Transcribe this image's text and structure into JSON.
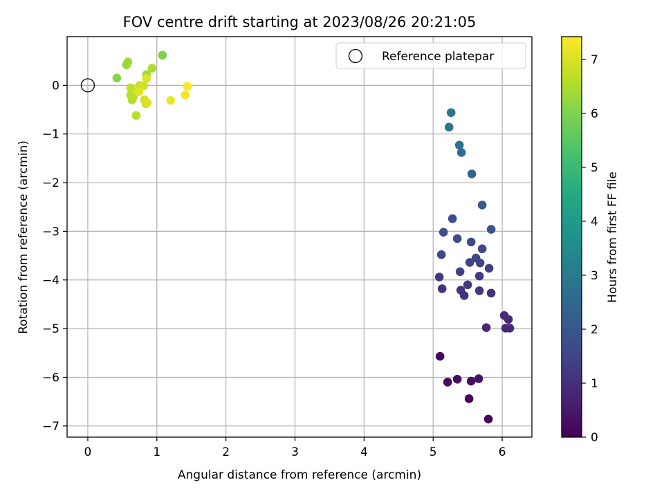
{
  "chart_data": {
    "type": "scatter",
    "title": "FOV centre drift starting at 2023/08/26 20:21:05",
    "xlabel": "Angular distance from reference (arcmin)",
    "ylabel": "Rotation from reference (arcmin)",
    "xlim": [
      -0.3,
      6.43
    ],
    "ylim": [
      -7.23,
      1.0
    ],
    "xticks": [
      0,
      1,
      2,
      3,
      4,
      5,
      6
    ],
    "yticks": [
      0,
      -1,
      -2,
      -3,
      -4,
      -5,
      -6,
      -7
    ],
    "grid": true,
    "legend": {
      "placement": "top-right",
      "entries": [
        "Reference platepar"
      ]
    },
    "reference_point": {
      "x": 0,
      "y": 0,
      "label": "Reference platepar"
    },
    "colorbar": {
      "label": "Hours from first FF file",
      "colormap": "viridis",
      "range": [
        0,
        7.42
      ],
      "ticks": [
        0,
        1,
        2,
        3,
        4,
        5,
        6,
        7
      ]
    },
    "series": [
      {
        "colormap": "viridis",
        "points": [
          {
            "x": 5.8,
            "y": -6.86,
            "t": 0.05
          },
          {
            "x": 5.52,
            "y": -6.44,
            "t": 0.1
          },
          {
            "x": 5.1,
            "y": -5.57,
            "t": 0.15
          },
          {
            "x": 5.21,
            "y": -6.1,
            "t": 0.2
          },
          {
            "x": 5.35,
            "y": -6.04,
            "t": 0.25
          },
          {
            "x": 5.55,
            "y": -6.08,
            "t": 0.3
          },
          {
            "x": 5.66,
            "y": -6.03,
            "t": 0.35
          },
          {
            "x": 5.77,
            "y": -4.98,
            "t": 0.8
          },
          {
            "x": 6.05,
            "y": -4.99,
            "t": 0.85
          },
          {
            "x": 6.11,
            "y": -4.99,
            "t": 0.85
          },
          {
            "x": 6.03,
            "y": -4.73,
            "t": 0.9
          },
          {
            "x": 6.09,
            "y": -4.81,
            "t": 0.9
          },
          {
            "x": 5.84,
            "y": -4.27,
            "t": 1.0
          },
          {
            "x": 5.45,
            "y": -4.32,
            "t": 1.05
          },
          {
            "x": 5.4,
            "y": -4.21,
            "t": 1.1
          },
          {
            "x": 5.13,
            "y": -4.18,
            "t": 1.1
          },
          {
            "x": 5.67,
            "y": -4.22,
            "t": 1.15
          },
          {
            "x": 5.5,
            "y": -4.1,
            "t": 1.2
          },
          {
            "x": 5.09,
            "y": -3.94,
            "t": 1.25
          },
          {
            "x": 5.67,
            "y": -3.92,
            "t": 1.3
          },
          {
            "x": 5.39,
            "y": -3.83,
            "t": 1.35
          },
          {
            "x": 5.81,
            "y": -3.76,
            "t": 1.4
          },
          {
            "x": 5.53,
            "y": -3.64,
            "t": 1.45
          },
          {
            "x": 5.68,
            "y": -3.65,
            "t": 1.5
          },
          {
            "x": 5.62,
            "y": -3.55,
            "t": 1.5
          },
          {
            "x": 5.12,
            "y": -3.48,
            "t": 1.55
          },
          {
            "x": 5.71,
            "y": -3.36,
            "t": 1.6
          },
          {
            "x": 5.55,
            "y": -3.22,
            "t": 1.65
          },
          {
            "x": 5.35,
            "y": -3.15,
            "t": 1.7
          },
          {
            "x": 5.15,
            "y": -3.02,
            "t": 1.75
          },
          {
            "x": 5.28,
            "y": -2.74,
            "t": 1.8
          },
          {
            "x": 5.84,
            "y": -2.96,
            "t": 1.9
          },
          {
            "x": 5.71,
            "y": -2.46,
            "t": 2.1
          },
          {
            "x": 5.56,
            "y": -1.82,
            "t": 2.4
          },
          {
            "x": 5.41,
            "y": -1.38,
            "t": 2.6
          },
          {
            "x": 5.38,
            "y": -1.23,
            "t": 2.7
          },
          {
            "x": 5.23,
            "y": -0.86,
            "t": 2.85
          },
          {
            "x": 5.26,
            "y": -0.56,
            "t": 2.95
          },
          {
            "x": 1.08,
            "y": 0.62,
            "t": 6.0
          },
          {
            "x": 0.42,
            "y": 0.15,
            "t": 6.1
          },
          {
            "x": 0.58,
            "y": 0.48,
            "t": 6.3
          },
          {
            "x": 0.56,
            "y": 0.42,
            "t": 6.35
          },
          {
            "x": 0.85,
            "y": 0.22,
            "t": 6.4
          },
          {
            "x": 0.93,
            "y": 0.35,
            "t": 6.5
          },
          {
            "x": 0.64,
            "y": -0.3,
            "t": 6.55
          },
          {
            "x": 0.7,
            "y": -0.62,
            "t": 6.6
          },
          {
            "x": 0.62,
            "y": -0.2,
            "t": 6.6
          },
          {
            "x": 0.66,
            "y": -0.24,
            "t": 6.65
          },
          {
            "x": 0.62,
            "y": -0.05,
            "t": 6.7
          },
          {
            "x": 0.73,
            "y": -0.1,
            "t": 6.75
          },
          {
            "x": 0.75,
            "y": 0.0,
            "t": 6.8
          },
          {
            "x": 0.81,
            "y": -0.01,
            "t": 6.85
          },
          {
            "x": 0.82,
            "y": -0.3,
            "t": 6.9
          },
          {
            "x": 0.84,
            "y": -0.38,
            "t": 6.95
          },
          {
            "x": 0.86,
            "y": -0.36,
            "t": 7.0
          },
          {
            "x": 0.85,
            "y": 0.14,
            "t": 7.05
          },
          {
            "x": 0.74,
            "y": -0.13,
            "t": 7.1
          },
          {
            "x": 1.2,
            "y": -0.31,
            "t": 7.2
          },
          {
            "x": 1.41,
            "y": -0.2,
            "t": 7.3
          },
          {
            "x": 1.44,
            "y": -0.02,
            "t": 7.4
          }
        ]
      }
    ]
  }
}
